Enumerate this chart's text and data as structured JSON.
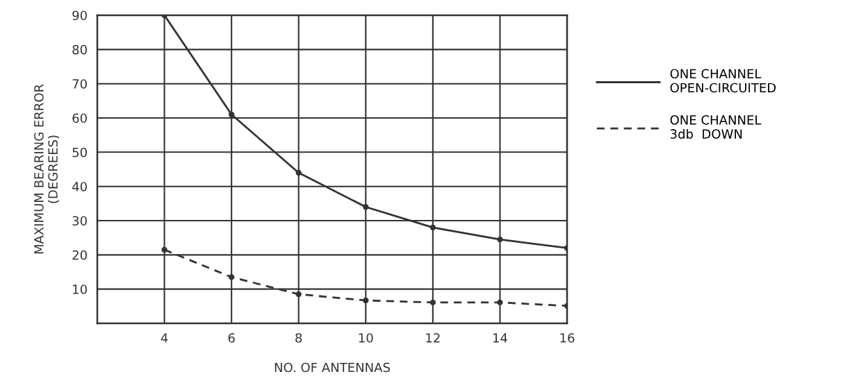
{
  "chart_data": {
    "type": "line",
    "xlabel": "NO. OF ANTENNAS",
    "ylabel": "MAXIMUM BEARING ERROR\n(DEGREES)",
    "x": [
      4,
      6,
      8,
      10,
      12,
      14,
      16
    ],
    "series": [
      {
        "name": "ONE CHANNEL\nOPEN-CIRCUITED",
        "color": "#333333",
        "line_style": "solid",
        "values": [
          90,
          61,
          44,
          34,
          28,
          24.5,
          22
        ]
      },
      {
        "name": "ONE CHANNEL\n3db  DOWN",
        "color": "#333333",
        "line_style": "dashed",
        "values": [
          21.5,
          13.5,
          8.5,
          6.7,
          6.1,
          6.1,
          5.1
        ]
      }
    ],
    "xlim": [
      2,
      16
    ],
    "xticks": [
      4,
      6,
      8,
      10,
      12,
      14,
      16
    ],
    "ylim": [
      0,
      90
    ],
    "yticks": [
      {
        "value": 0,
        "label": null
      },
      10,
      20,
      30,
      40,
      50,
      60,
      70,
      80,
      90
    ],
    "grid": true,
    "legend": "right",
    "marker": "circle"
  }
}
